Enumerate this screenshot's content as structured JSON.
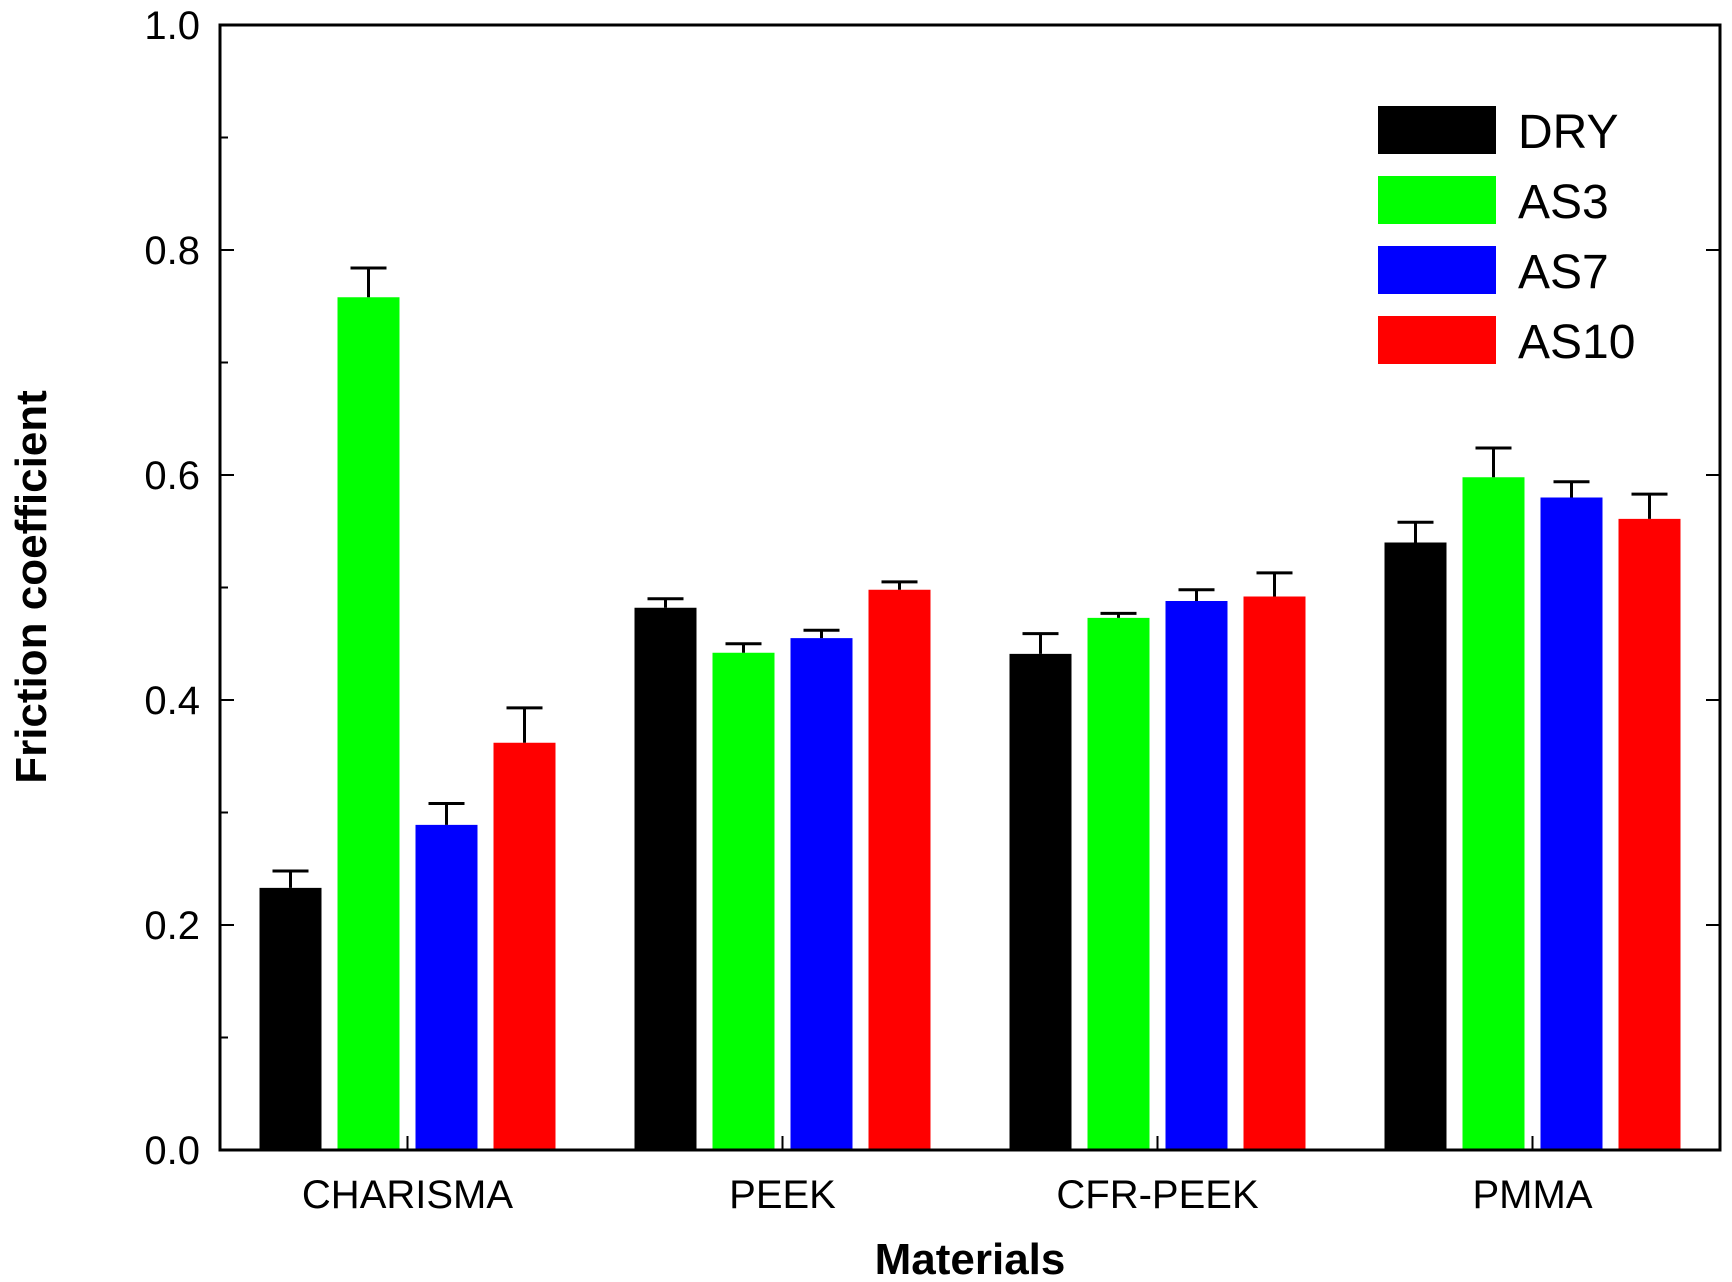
{
  "chart_data": {
    "type": "bar",
    "title": "",
    "xlabel": "Materials",
    "ylabel": "Friction coefficient",
    "ylim": [
      0,
      1.0
    ],
    "yticks": [
      "0.0",
      "0.2",
      "0.4",
      "0.6",
      "0.8",
      "1.0"
    ],
    "ytick_values": [
      0.0,
      0.2,
      0.4,
      0.6,
      0.8,
      1.0
    ],
    "minor_ytick_values": [
      0.1,
      0.3,
      0.5,
      0.7,
      0.9
    ],
    "grid": false,
    "legend_position": "top-right",
    "categories": [
      "CHARISMA",
      "PEEK",
      "CFR-PEEK",
      "PMMA"
    ],
    "series": [
      {
        "name": "DRY",
        "color": "#000000",
        "values": [
          0.233,
          0.482,
          0.441,
          0.54
        ],
        "errors": [
          0.015,
          0.008,
          0.018,
          0.018
        ]
      },
      {
        "name": "AS3",
        "color": "#00ff00",
        "values": [
          0.758,
          0.442,
          0.473,
          0.598
        ],
        "errors": [
          0.026,
          0.008,
          0.004,
          0.026
        ]
      },
      {
        "name": "AS7",
        "color": "#0000ff",
        "values": [
          0.289,
          0.455,
          0.488,
          0.58
        ],
        "errors": [
          0.019,
          0.007,
          0.01,
          0.014
        ]
      },
      {
        "name": "AS10",
        "color": "#ff0000",
        "values": [
          0.362,
          0.498,
          0.492,
          0.561
        ],
        "errors": [
          0.031,
          0.007,
          0.021,
          0.022
        ]
      }
    ]
  }
}
